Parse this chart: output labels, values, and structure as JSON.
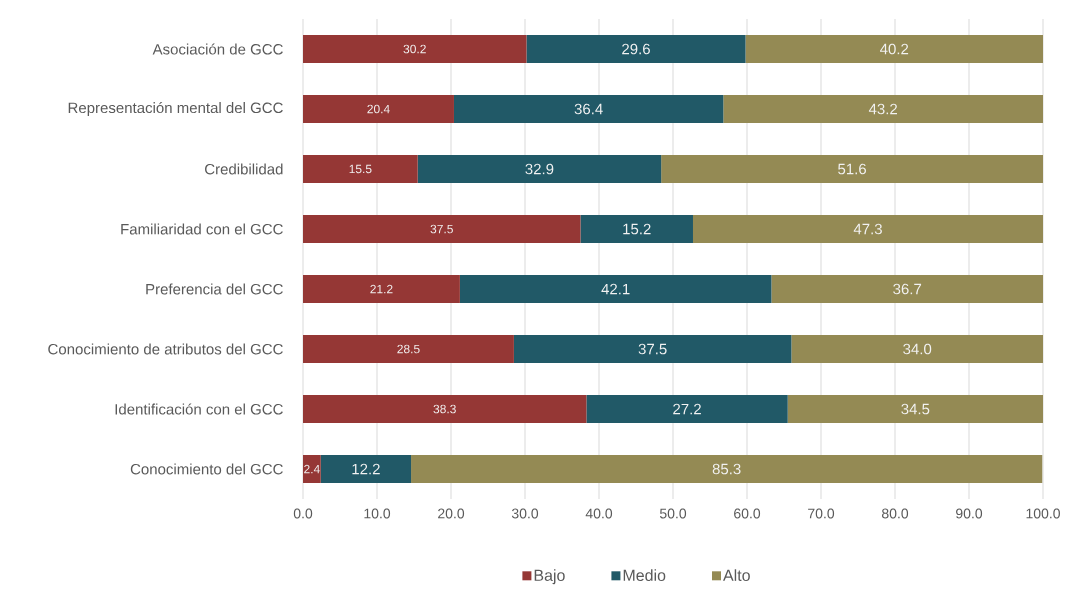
{
  "chart_data": {
    "type": "bar",
    "orientation": "horizontal",
    "stacked": true,
    "categories": [
      "Asociación de GCC",
      "Representación mental del GCC",
      "Credibilidad",
      "Familiaridad con el GCC",
      "Preferencia del GCC",
      "Conocimiento de atributos del GCC",
      "Identificación con el GCC",
      "Conocimiento del GCC"
    ],
    "series": [
      {
        "name": "Bajo",
        "color": "#953735",
        "values": [
          30.2,
          20.4,
          15.5,
          37.5,
          21.2,
          28.5,
          38.3,
          2.4
        ],
        "value_labels": [
          "30.2",
          "20.4",
          "15.5",
          "37.5",
          "21.2",
          "28.5",
          "38.3",
          "2.4"
        ]
      },
      {
        "name": "Medio",
        "color": "#215967",
        "values": [
          29.6,
          36.4,
          32.9,
          15.2,
          42.1,
          37.5,
          27.2,
          12.2
        ],
        "value_labels": [
          "29.6",
          "36.4",
          "32.9",
          "15.2",
          "42.1",
          "37.5",
          "27.2",
          "12.2"
        ]
      },
      {
        "name": "Alto",
        "color": "#948A54",
        "values": [
          40.2,
          43.2,
          51.6,
          47.3,
          36.7,
          34.0,
          34.5,
          85.3
        ],
        "value_labels": [
          "40.2",
          "43.2",
          "51.6",
          "47.3",
          "36.7",
          "34.0",
          "34.5",
          "85.3"
        ]
      }
    ],
    "xlim": [
      0,
      100
    ],
    "xticks": [
      {
        "value": 0,
        "label": "0.0"
      },
      {
        "value": 10,
        "label": "10.0"
      },
      {
        "value": 20,
        "label": "20.0"
      },
      {
        "value": 30,
        "label": "30.0"
      },
      {
        "value": 40,
        "label": "40.0"
      },
      {
        "value": 50,
        "label": "50.0"
      },
      {
        "value": 60,
        "label": "60.0"
      },
      {
        "value": 70,
        "label": "70.0"
      },
      {
        "value": 80,
        "label": "80.0"
      },
      {
        "value": 90,
        "label": "90.0"
      },
      {
        "value": 100,
        "label": "100.0"
      }
    ],
    "grid": "x",
    "legend": "bottom"
  }
}
